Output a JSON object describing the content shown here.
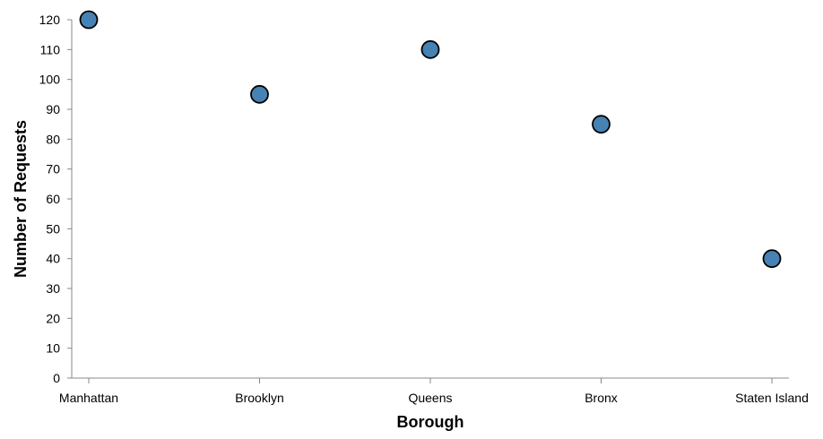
{
  "chart_data": {
    "type": "scatter",
    "categories": [
      "Manhattan",
      "Brooklyn",
      "Queens",
      "Bronx",
      "Staten Island"
    ],
    "values": [
      120,
      95,
      110,
      85,
      40
    ],
    "xlabel": "Borough",
    "ylabel": "Number of Requests",
    "ylim": [
      0,
      120
    ],
    "yticks": [
      0,
      10,
      20,
      30,
      40,
      50,
      60,
      70,
      80,
      90,
      100,
      110,
      120
    ],
    "grid": false,
    "colors": {
      "point_fill": "#4682b4",
      "point_stroke": "#000000"
    }
  }
}
